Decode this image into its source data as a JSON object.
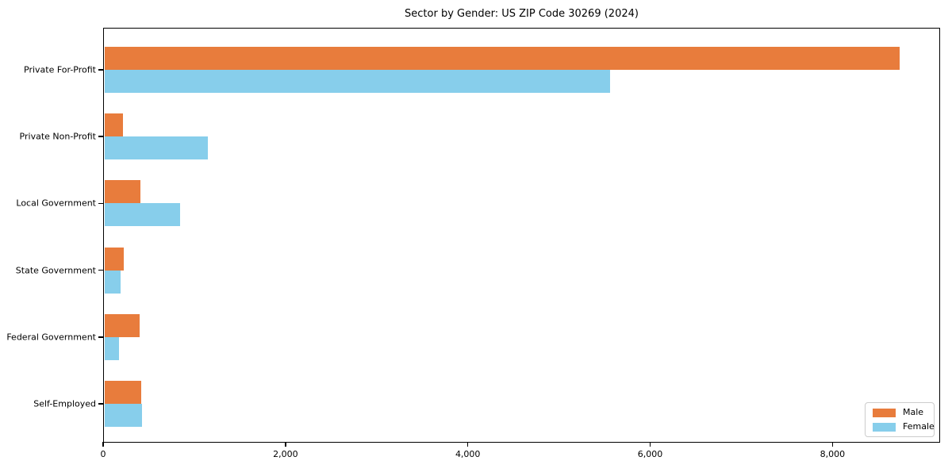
{
  "chart_data": {
    "type": "bar",
    "orientation": "horizontal",
    "title": "Sector by Gender: US ZIP Code 30269 (2024)",
    "xlabel": "",
    "ylabel": "",
    "categories": [
      "Private For-Profit",
      "Private Non-Profit",
      "Local Government",
      "State Government",
      "Federal Government",
      "Self-Employed"
    ],
    "series": [
      {
        "name": "Male",
        "color": "#E87C3C",
        "values": [
          8740,
          220,
          410,
          225,
          400,
          420
        ]
      },
      {
        "name": "Female",
        "color": "#87CEEB",
        "values": [
          5560,
          1150,
          840,
          190,
          175,
          430
        ]
      }
    ],
    "xlim": [
      0,
      9180
    ],
    "xticks": {
      "values": [
        0,
        2000,
        4000,
        6000,
        8000
      ],
      "labels": [
        "0",
        "2,000",
        "4,000",
        "6,000",
        "8,000"
      ]
    },
    "grid": false,
    "legend": {
      "position": "lower right",
      "entries": [
        "Male",
        "Female"
      ]
    }
  },
  "colors": {
    "axis": "#000000",
    "background": "#ffffff",
    "legend_border": "#cccccc"
  }
}
